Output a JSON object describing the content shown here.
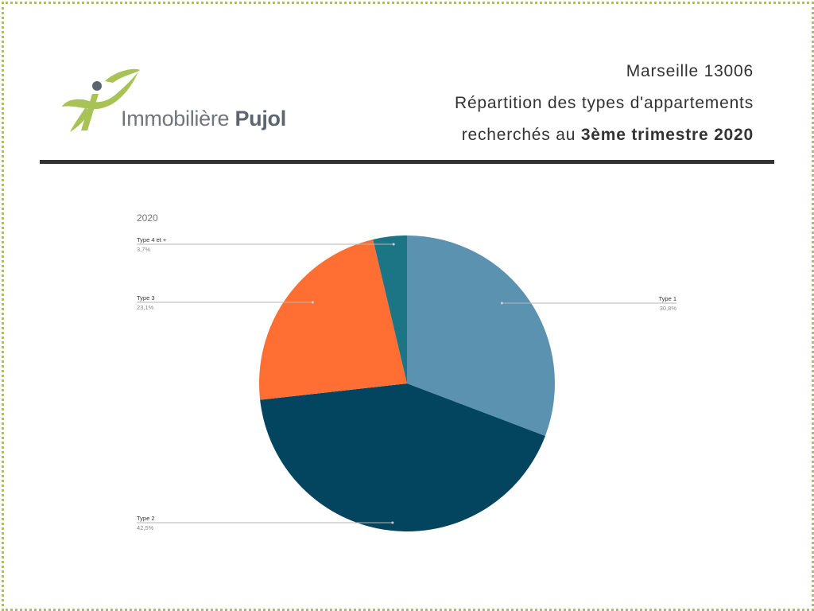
{
  "brand": {
    "name_light": "Immobilière ",
    "name_bold": "Pujol",
    "logo_color": "#a8c256",
    "logo_icon": "fish-i-logo"
  },
  "header": {
    "line1": "Marseille 13006",
    "line2": "Répartition des types d'appartements",
    "line3_prefix": "recherchés au ",
    "line3_bold": "3ème trimestre 2020"
  },
  "chart_data": {
    "type": "pie",
    "title": "2020",
    "slices": [
      {
        "name": "Type 1",
        "value": 30.8,
        "label": "30,8%",
        "color": "#5b92b0"
      },
      {
        "name": "Type 2",
        "value": 42.5,
        "label": "42,5%",
        "color": "#03455f"
      },
      {
        "name": "Type 3",
        "value": 23.1,
        "label": "23,1%",
        "color": "#ff6f33"
      },
      {
        "name": "Type 4 et +",
        "value": 3.7,
        "label": "3,7%",
        "color": "#1b7585"
      }
    ]
  }
}
